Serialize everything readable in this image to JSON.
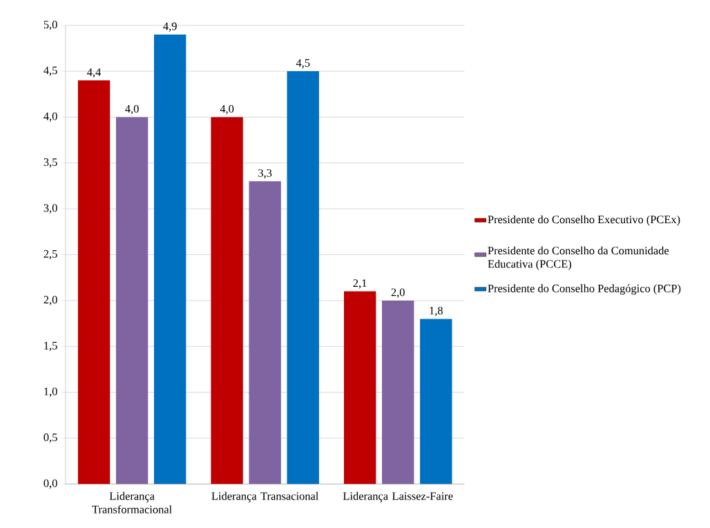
{
  "chart_data": {
    "type": "bar",
    "categories": [
      "Liderança Transformacional",
      "Liderança Transacional",
      "Liderança Laissez-Faire"
    ],
    "series": [
      {
        "name": "Presidente do Conselho Executivo (PCEx)",
        "color": "#c00000",
        "values": [
          4.4,
          4.0,
          2.1
        ],
        "value_labels": [
          "4,4",
          "4,0",
          "2,1"
        ]
      },
      {
        "name": "Presidente do Conselho da Comunidade Educativa (PCCE)",
        "color": "#8064a2",
        "values": [
          4.0,
          3.3,
          2.0
        ],
        "value_labels": [
          "4,0",
          "3,3",
          "2,0"
        ]
      },
      {
        "name": "Presidente do Conselho Pedagógico (PCP)",
        "color": "#0070c0",
        "values": [
          4.9,
          4.5,
          1.8
        ],
        "value_labels": [
          "4,9",
          "4,5",
          "1,8"
        ]
      }
    ],
    "ylim": [
      0,
      5
    ],
    "yticks": [
      {
        "value": 0,
        "label": "0,0"
      },
      {
        "value": 0.5,
        "label": "0,5"
      },
      {
        "value": 1,
        "label": "1,0"
      },
      {
        "value": 1.5,
        "label": "1,5"
      },
      {
        "value": 2,
        "label": "2,0"
      },
      {
        "value": 2.5,
        "label": "2,5"
      },
      {
        "value": 3,
        "label": "3,0"
      },
      {
        "value": 3.5,
        "label": "3,5"
      },
      {
        "value": 4,
        "label": "4,0"
      },
      {
        "value": 4.5,
        "label": "4,5"
      },
      {
        "value": 5,
        "label": "5,0"
      }
    ],
    "grid": "y",
    "legend": "right"
  }
}
